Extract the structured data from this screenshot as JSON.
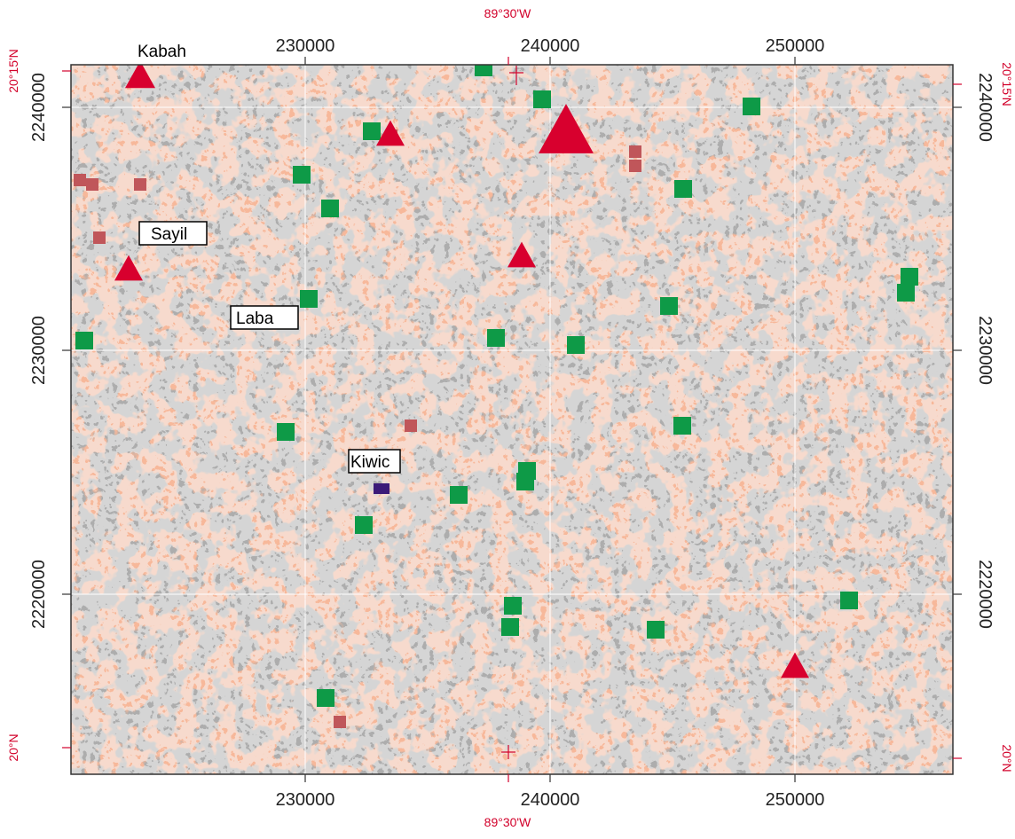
{
  "map": {
    "grid_labels": {
      "top": [
        "230000",
        "240000",
        "250000"
      ],
      "bottom": [
        "230000",
        "240000",
        "250000"
      ],
      "left": [
        "2240000",
        "2230000",
        "2220000"
      ],
      "right": [
        "2240000",
        "2230000",
        "2220000"
      ]
    },
    "latlon_labels": {
      "top_longitude": "89°30'W",
      "bottom_longitude": "89°30'W",
      "left_top": "20°15'N",
      "left_bottom": "20°N",
      "right_top": "20°15'N",
      "right_bottom": "20°N"
    },
    "site_labels": [
      "Kabah",
      "Sayil",
      "Laba",
      "Kiwic"
    ],
    "colors": {
      "background": "#f7b89a",
      "terrain": "#6c6c6c",
      "grid": "#ffffff",
      "green_site": "#0e9a47",
      "red_site": "#d8002e",
      "brown_site": "#c0565a",
      "purple_site": "#3b1a78",
      "latlon_text": "#d2002a"
    },
    "markers": {
      "green_squares": 26,
      "red_triangles": 6,
      "brown_squares": 9,
      "purple_squares": 1
    }
  }
}
